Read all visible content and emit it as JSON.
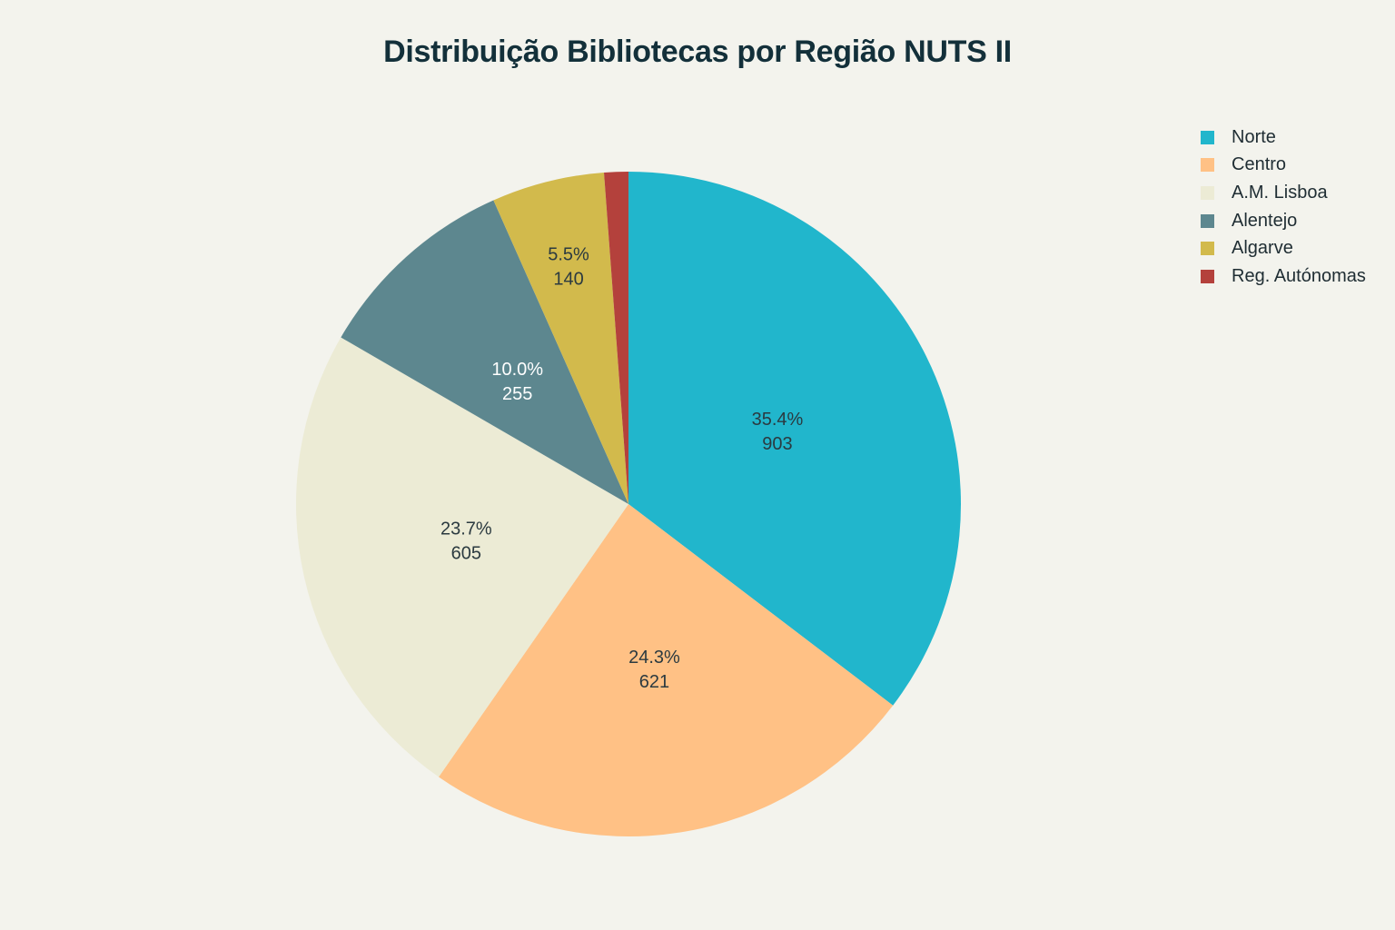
{
  "chart_data": {
    "type": "pie",
    "title": "Distribuição Bibliotecas por Região NUTS II",
    "legend_position": "top-right",
    "slices": [
      {
        "name": "Norte",
        "value": 903,
        "percent_label": "35.4%",
        "color": "#21B6CC",
        "text_color": "#2B3A40"
      },
      {
        "name": "Centro",
        "value": 621,
        "percent_label": "24.3%",
        "color": "#FFC185",
        "text_color": "#2B3A40"
      },
      {
        "name": "A.M. Lisboa",
        "value": 605,
        "percent_label": "23.7%",
        "color": "#ECEBD5",
        "text_color": "#2B3A40"
      },
      {
        "name": "Alentejo",
        "value": 255,
        "percent_label": "10.0%",
        "color": "#5D878F",
        "text_color": "#FFFFFF"
      },
      {
        "name": "Algarve",
        "value": 140,
        "percent_label": "5.5%",
        "color": "#D2BA4C",
        "text_color": "#2B3A40"
      },
      {
        "name": "Reg. Autónomas",
        "value": 30,
        "percent_label": "",
        "color": "#B4413C",
        "text_color": "#FFFFFF"
      }
    ]
  }
}
